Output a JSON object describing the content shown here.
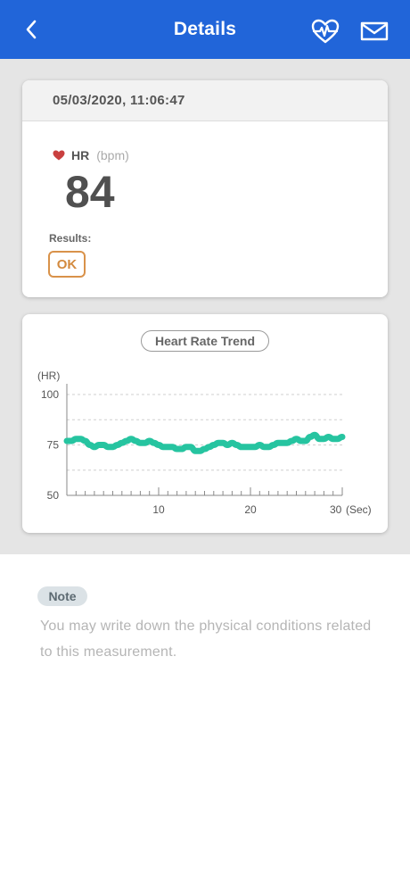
{
  "header": {
    "title": "Details",
    "back_icon": "chevron-left-icon",
    "heart_icon": "heart-pulse-icon",
    "mail_icon": "mail-icon",
    "color": "#2165d9"
  },
  "measurement": {
    "datetime": "05/03/2020, 11:06:47",
    "hr_label": "HR",
    "hr_unit": "(bpm)",
    "hr_value": "84",
    "results_label": "Results:",
    "result": "OK"
  },
  "trend": {
    "title": "Heart Rate Trend"
  },
  "chart_data": {
    "type": "line",
    "title": "Heart Rate Trend",
    "ylabel": "(HR)",
    "xlabel": "(Sec)",
    "ylim": [
      50,
      100
    ],
    "xlim": [
      0,
      30
    ],
    "y_ticks": [
      50,
      75,
      100
    ],
    "x_ticks": [
      10,
      20,
      30
    ],
    "x_tick_labels": [
      "10",
      "20",
      "30"
    ],
    "y_tick_labels": [
      "50",
      "75",
      "100"
    ],
    "color": "#26c4a0",
    "x": [
      0,
      0.5,
      1,
      1.5,
      2,
      2.5,
      3,
      3.5,
      4,
      4.5,
      5,
      5.5,
      6,
      6.5,
      7,
      7.5,
      8,
      8.5,
      9,
      9.5,
      10,
      10.5,
      11,
      11.5,
      12,
      12.5,
      13,
      13.5,
      14,
      14.5,
      15,
      15.5,
      16,
      16.5,
      17,
      17.5,
      18,
      18.5,
      19,
      19.5,
      20,
      20.5,
      21,
      21.5,
      22,
      22.5,
      23,
      23.5,
      24,
      24.5,
      25,
      25.5,
      26,
      26.5,
      27,
      27.5,
      28,
      28.5,
      29,
      29.5,
      30
    ],
    "values": [
      77,
      77,
      78,
      78,
      77,
      75,
      74,
      75,
      75,
      74,
      74,
      75,
      76,
      77,
      78,
      77,
      76,
      76,
      77,
      76,
      75,
      74,
      74,
      74,
      73,
      73,
      74,
      74,
      72,
      72,
      73,
      74,
      75,
      76,
      76,
      75,
      76,
      75,
      74,
      74,
      74,
      74,
      75,
      74,
      74,
      75,
      76,
      76,
      76,
      77,
      78,
      77,
      77,
      79,
      80,
      78,
      78,
      79,
      78,
      78,
      79
    ]
  },
  "note": {
    "label": "Note",
    "placeholder": "You may write down the physical conditions related to this measurement."
  }
}
